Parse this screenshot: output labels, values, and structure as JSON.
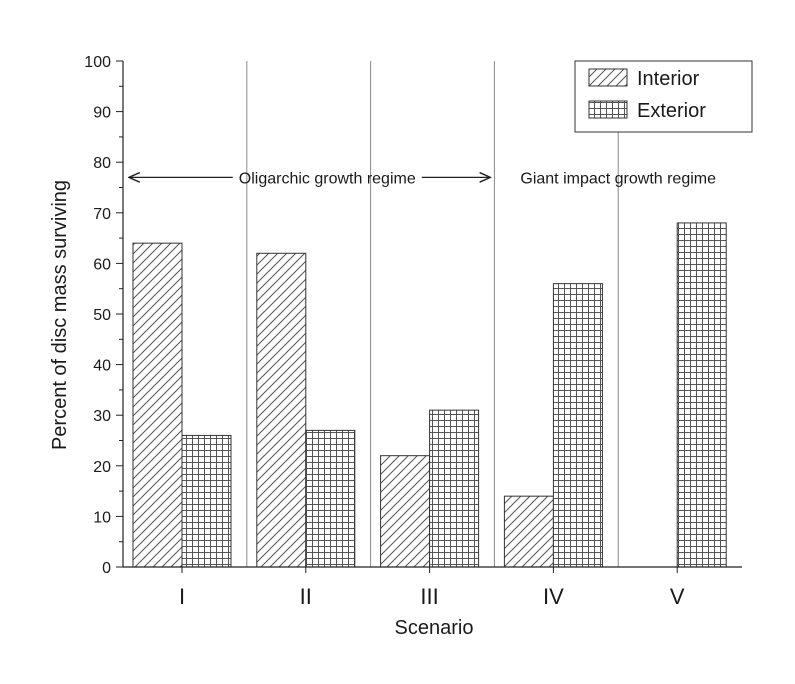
{
  "chart_data": {
    "type": "bar",
    "title": "",
    "xlabel": "Scenario",
    "ylabel": "Percent of disc mass surviving",
    "ylim": [
      0,
      100
    ],
    "yticks": [
      0,
      10,
      20,
      30,
      40,
      50,
      60,
      70,
      80,
      90,
      100
    ],
    "categories": [
      "I",
      "II",
      "III",
      "IV",
      "V"
    ],
    "series": [
      {
        "name": "Interior",
        "pattern": "diagonal-hatch",
        "values": [
          64,
          62,
          22,
          14,
          0
        ]
      },
      {
        "name": "Exterior",
        "pattern": "grid-hatch",
        "values": [
          26,
          27,
          31,
          56,
          68
        ]
      }
    ],
    "legend_placement": "top-right",
    "grid": false,
    "annotations": [
      {
        "text": "Oligarchic growth regime",
        "type": "double-arrow",
        "span_categories": [
          "I",
          "III"
        ],
        "y": 77
      },
      {
        "text": "Giant impact growth regime",
        "type": "label",
        "span_categories": [
          "IV",
          "V"
        ],
        "y": 77
      }
    ],
    "bar_color": "#ffffff",
    "stroke_color": "#333333"
  }
}
